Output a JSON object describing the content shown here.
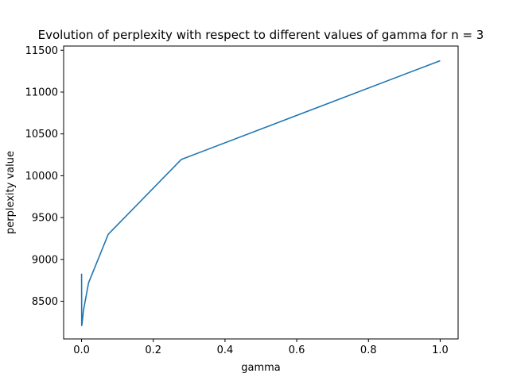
{
  "chart_data": {
    "type": "line",
    "title": "Evolution of perplexity with respect to different values of gamma for n = 3",
    "xlabel": "gamma",
    "ylabel": "perplexity value",
    "xlim": [
      -0.05,
      1.05
    ],
    "ylim": [
      8050,
      11550
    ],
    "xticks": [
      0.0,
      0.2,
      0.4,
      0.6,
      0.8,
      1.0
    ],
    "xtick_labels": [
      "0.0",
      "0.2",
      "0.4",
      "0.6",
      "0.8",
      "1.0"
    ],
    "yticks": [
      8500,
      9000,
      9500,
      10000,
      10500,
      11000,
      11500
    ],
    "ytick_labels": [
      "8500",
      "9000",
      "9500",
      "10000",
      "10500",
      "11000",
      "11500"
    ],
    "grid": false,
    "series": [
      {
        "color": "#1f77b4",
        "x": [
          0.0001,
          0.0004,
          0.0014,
          0.0053,
          0.0195,
          0.0744,
          0.2783,
          1.0
        ],
        "y": [
          8830,
          8210,
          8230,
          8390,
          8720,
          9300,
          10195,
          11375
        ]
      }
    ]
  }
}
